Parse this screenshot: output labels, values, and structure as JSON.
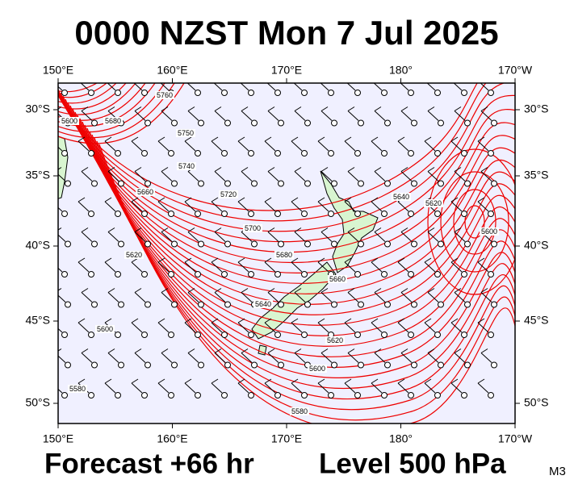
{
  "header": {
    "title": "0000 NZST Mon 7 Jul 2025"
  },
  "map": {
    "lon_labels": [
      "150°E",
      "160°E",
      "170°E",
      "180°",
      "170°W"
    ],
    "lat_labels": [
      "30°S",
      "35°S",
      "40°S",
      "45°S",
      "50°S"
    ],
    "contour_labels": [
      "5760",
      "5600",
      "5680",
      "5750",
      "5740",
      "5660",
      "5720",
      "5700",
      "5680",
      "5620",
      "5660",
      "5640",
      "5600",
      "5620",
      "5600",
      "5580",
      "5580",
      "5640",
      "5620",
      "5600"
    ]
  },
  "footer": {
    "forecast": "Forecast +66 hr",
    "level": "Level 500 hPa",
    "model": "M3"
  }
}
